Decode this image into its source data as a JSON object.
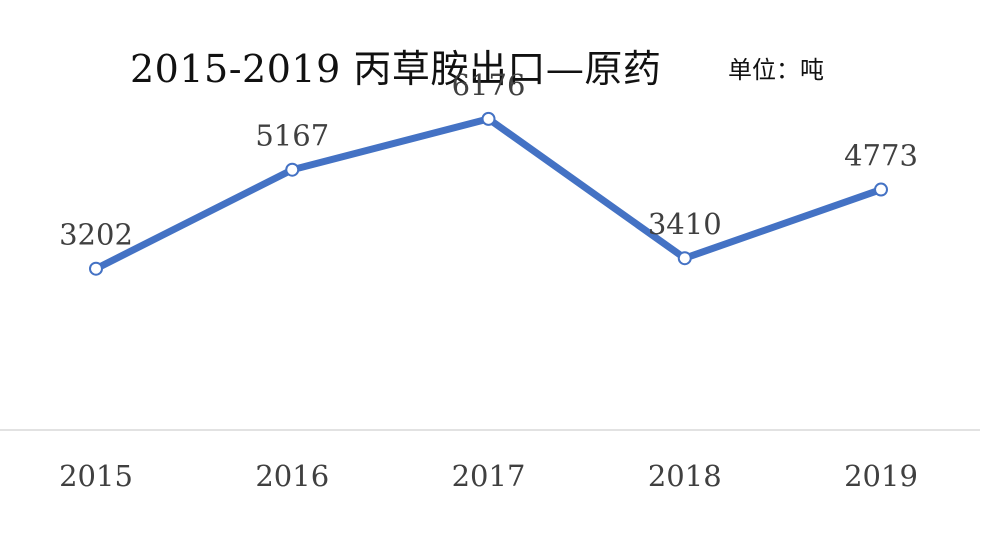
{
  "chart_data": {
    "type": "line",
    "title": "2015-2019 丙草胺出口—原药",
    "unit_label": "单位：吨",
    "categories": [
      "2015",
      "2016",
      "2017",
      "2018",
      "2019"
    ],
    "series": [
      {
        "values": [
          3202,
          5167,
          6176,
          3410,
          4773
        ],
        "color": "#4472C4"
      }
    ],
    "data_labels": [
      "3202",
      "5167",
      "6176",
      "3410",
      "4773"
    ],
    "ylim": [
      0,
      8000
    ],
    "grid": false,
    "legend": "none"
  }
}
